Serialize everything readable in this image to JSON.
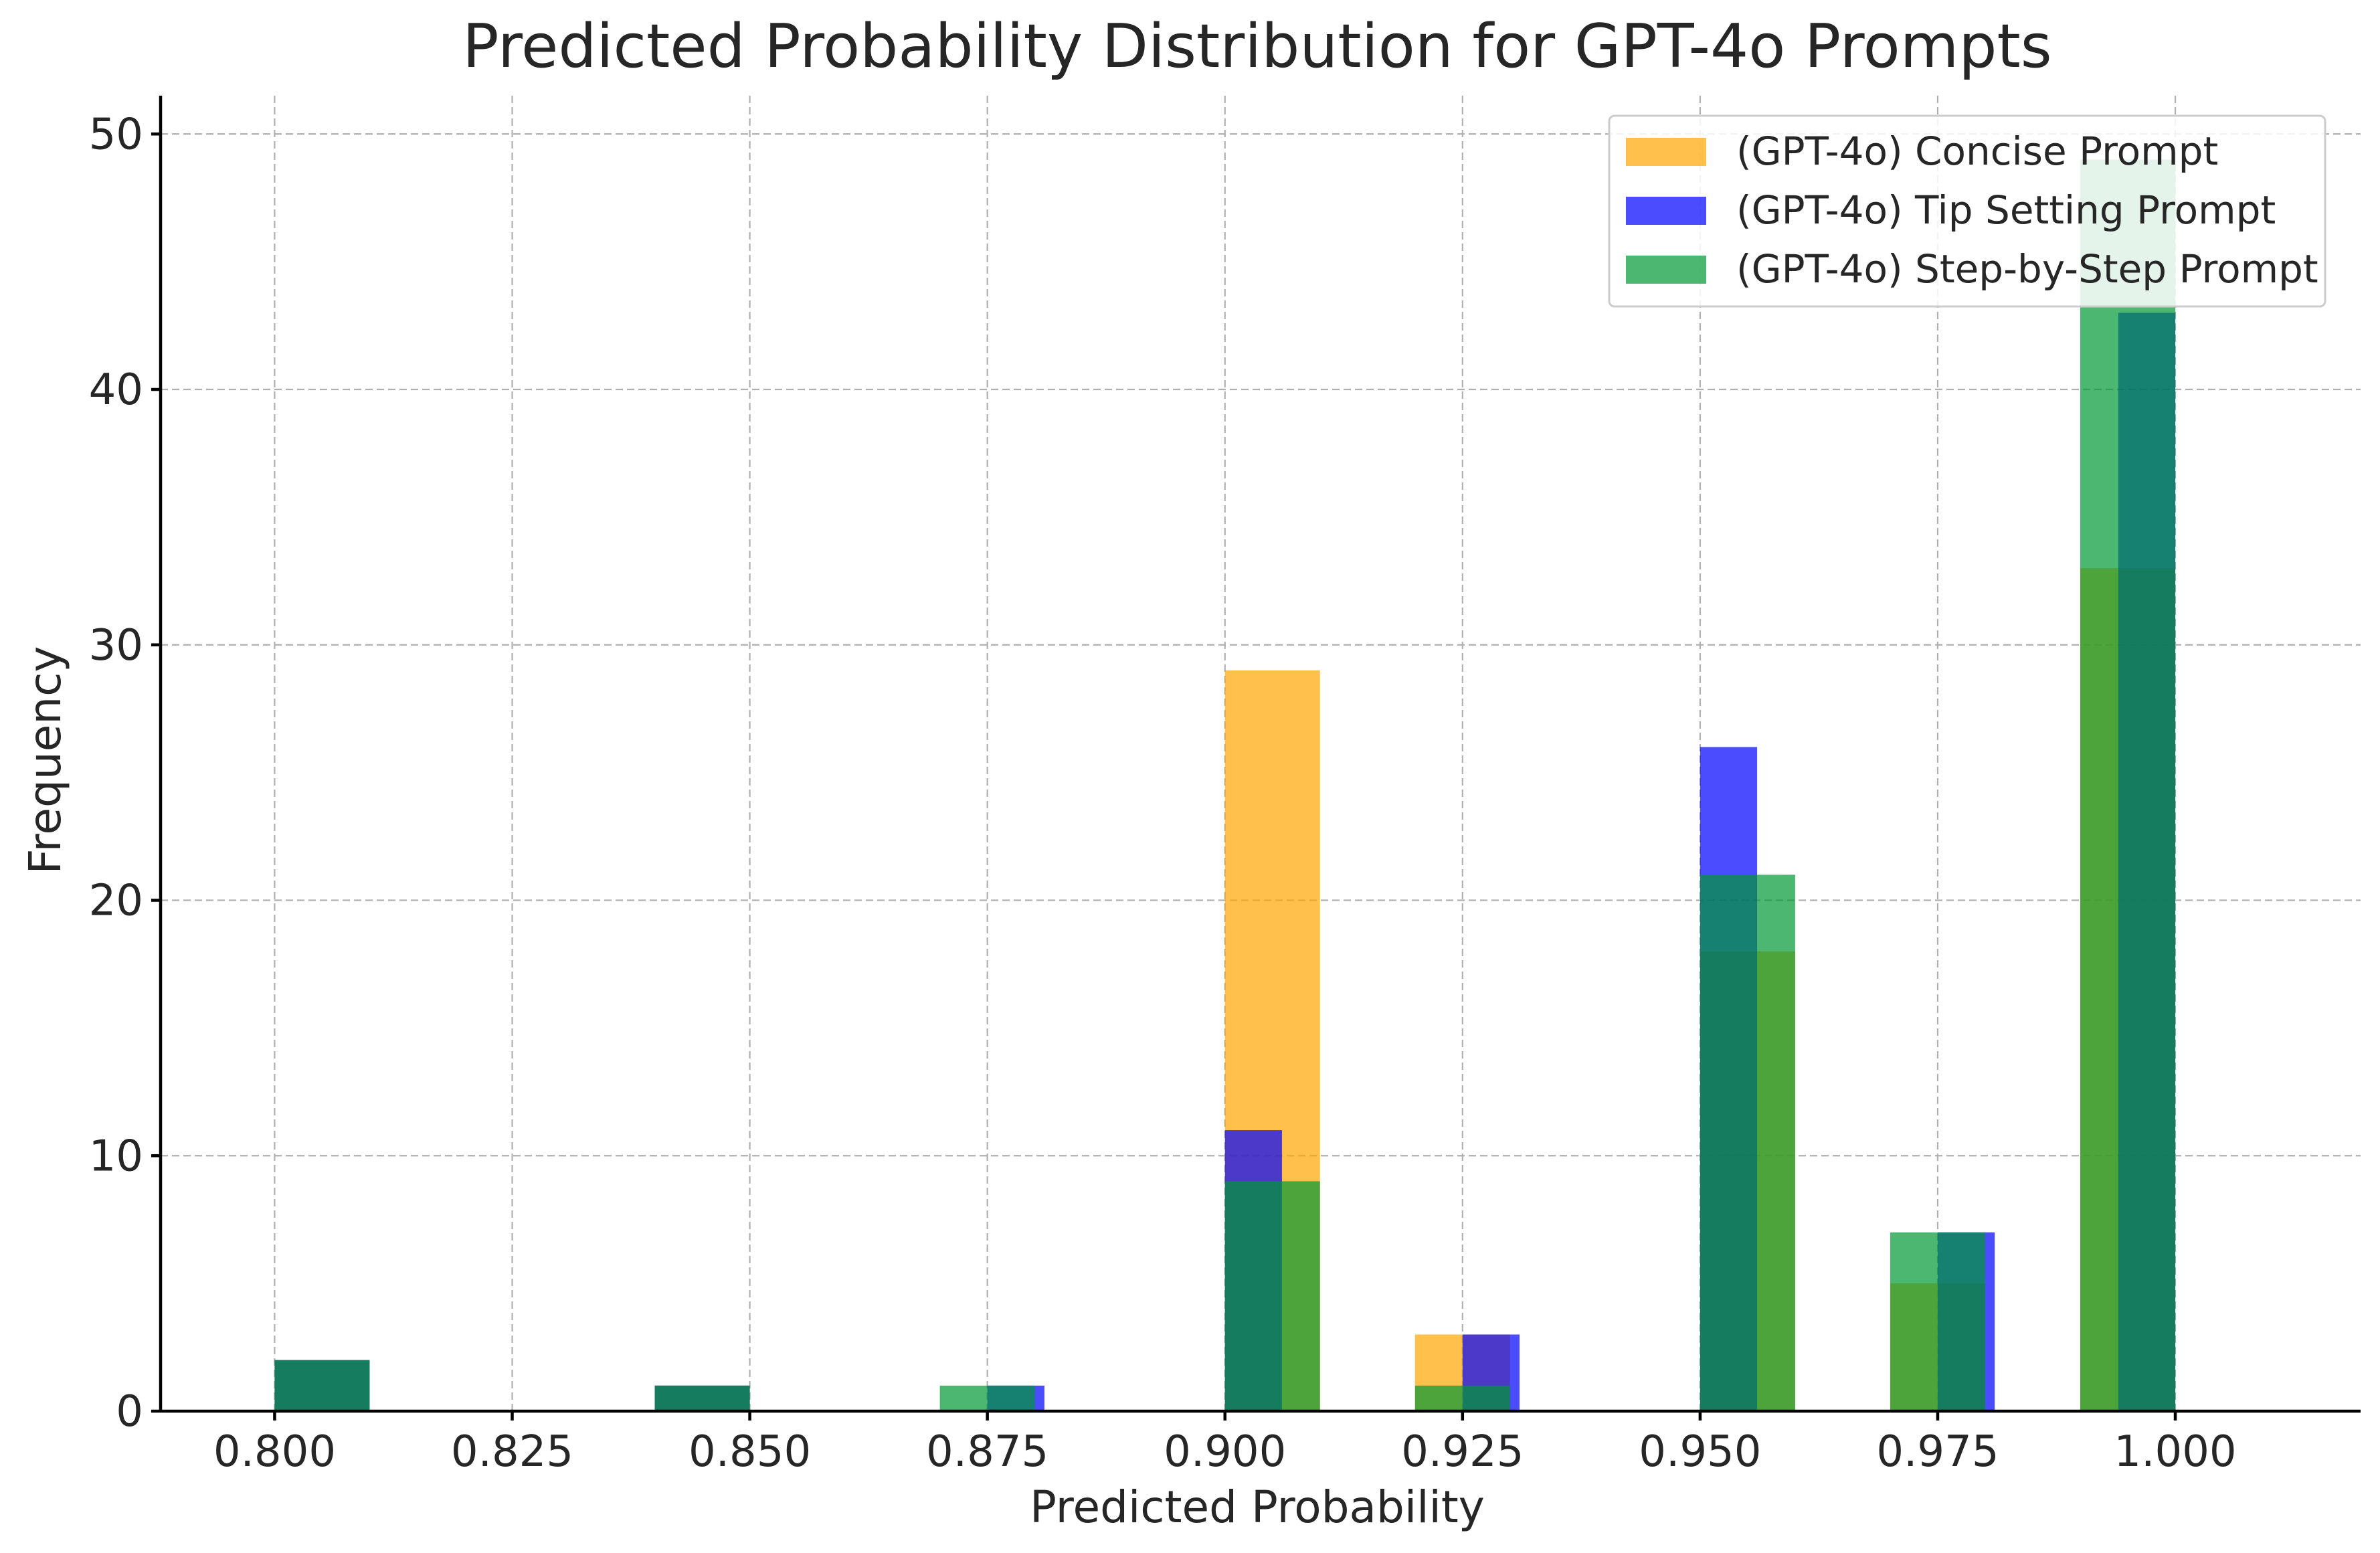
{
  "chart_data": {
    "type": "bar",
    "subtype": "histogram-overlay",
    "title": "Predicted Probability Distribution for GPT-4o Prompts",
    "xlabel": "Predicted Probability",
    "ylabel": "Frequency",
    "xlim": [
      0.788,
      1.0195
    ],
    "ylim": [
      0,
      51.5
    ],
    "xticks": [
      0.8,
      0.825,
      0.85,
      0.875,
      0.9,
      0.925,
      0.95,
      0.975,
      1.0
    ],
    "xtick_labels": [
      "0.800",
      "0.825",
      "0.850",
      "0.875",
      "0.900",
      "0.925",
      "0.950",
      "0.975",
      "1.000"
    ],
    "yticks": [
      0,
      10,
      20,
      30,
      40,
      50
    ],
    "ytick_labels": [
      "0",
      "10",
      "20",
      "30",
      "40",
      "50"
    ],
    "grid": true,
    "legend_position": "top-right",
    "bar_opacity": 0.7,
    "series": [
      {
        "name": "(GPT-4o) Concise Prompt",
        "color": "#FFA500",
        "bins": [
          {
            "x0": 0.8,
            "x1": 0.81,
            "value": 2
          },
          {
            "x0": 0.84,
            "x1": 0.85,
            "value": 1
          },
          {
            "x0": 0.9,
            "x1": 0.91,
            "value": 29
          },
          {
            "x0": 0.92,
            "x1": 0.93,
            "value": 3
          },
          {
            "x0": 0.95,
            "x1": 0.96,
            "value": 18
          },
          {
            "x0": 0.97,
            "x1": 0.98,
            "value": 5
          },
          {
            "x0": 0.99,
            "x1": 1.0,
            "value": 33
          }
        ]
      },
      {
        "name": "(GPT-4o) Tip Setting Prompt",
        "color": "#0000FF",
        "bins": [
          {
            "x0": 0.8,
            "x1": 0.81,
            "value": 2
          },
          {
            "x0": 0.84,
            "x1": 0.85,
            "value": 1
          },
          {
            "x0": 0.875,
            "x1": 0.881,
            "value": 1
          },
          {
            "x0": 0.9,
            "x1": 0.906,
            "value": 11
          },
          {
            "x0": 0.925,
            "x1": 0.931,
            "value": 3
          },
          {
            "x0": 0.95,
            "x1": 0.956,
            "value": 26
          },
          {
            "x0": 0.975,
            "x1": 0.981,
            "value": 7
          },
          {
            "x0": 0.994,
            "x1": 1.0,
            "value": 43
          }
        ]
      },
      {
        "name": "(GPT-4o) Step-by-Step Prompt",
        "color": "#009933",
        "bins": [
          {
            "x0": 0.8,
            "x1": 0.81,
            "value": 2
          },
          {
            "x0": 0.84,
            "x1": 0.85,
            "value": 1
          },
          {
            "x0": 0.87,
            "x1": 0.88,
            "value": 1
          },
          {
            "x0": 0.9,
            "x1": 0.91,
            "value": 9
          },
          {
            "x0": 0.92,
            "x1": 0.93,
            "value": 1
          },
          {
            "x0": 0.95,
            "x1": 0.96,
            "value": 21
          },
          {
            "x0": 0.97,
            "x1": 0.98,
            "value": 7
          },
          {
            "x0": 0.99,
            "x1": 1.0,
            "value": 49
          }
        ]
      }
    ]
  }
}
